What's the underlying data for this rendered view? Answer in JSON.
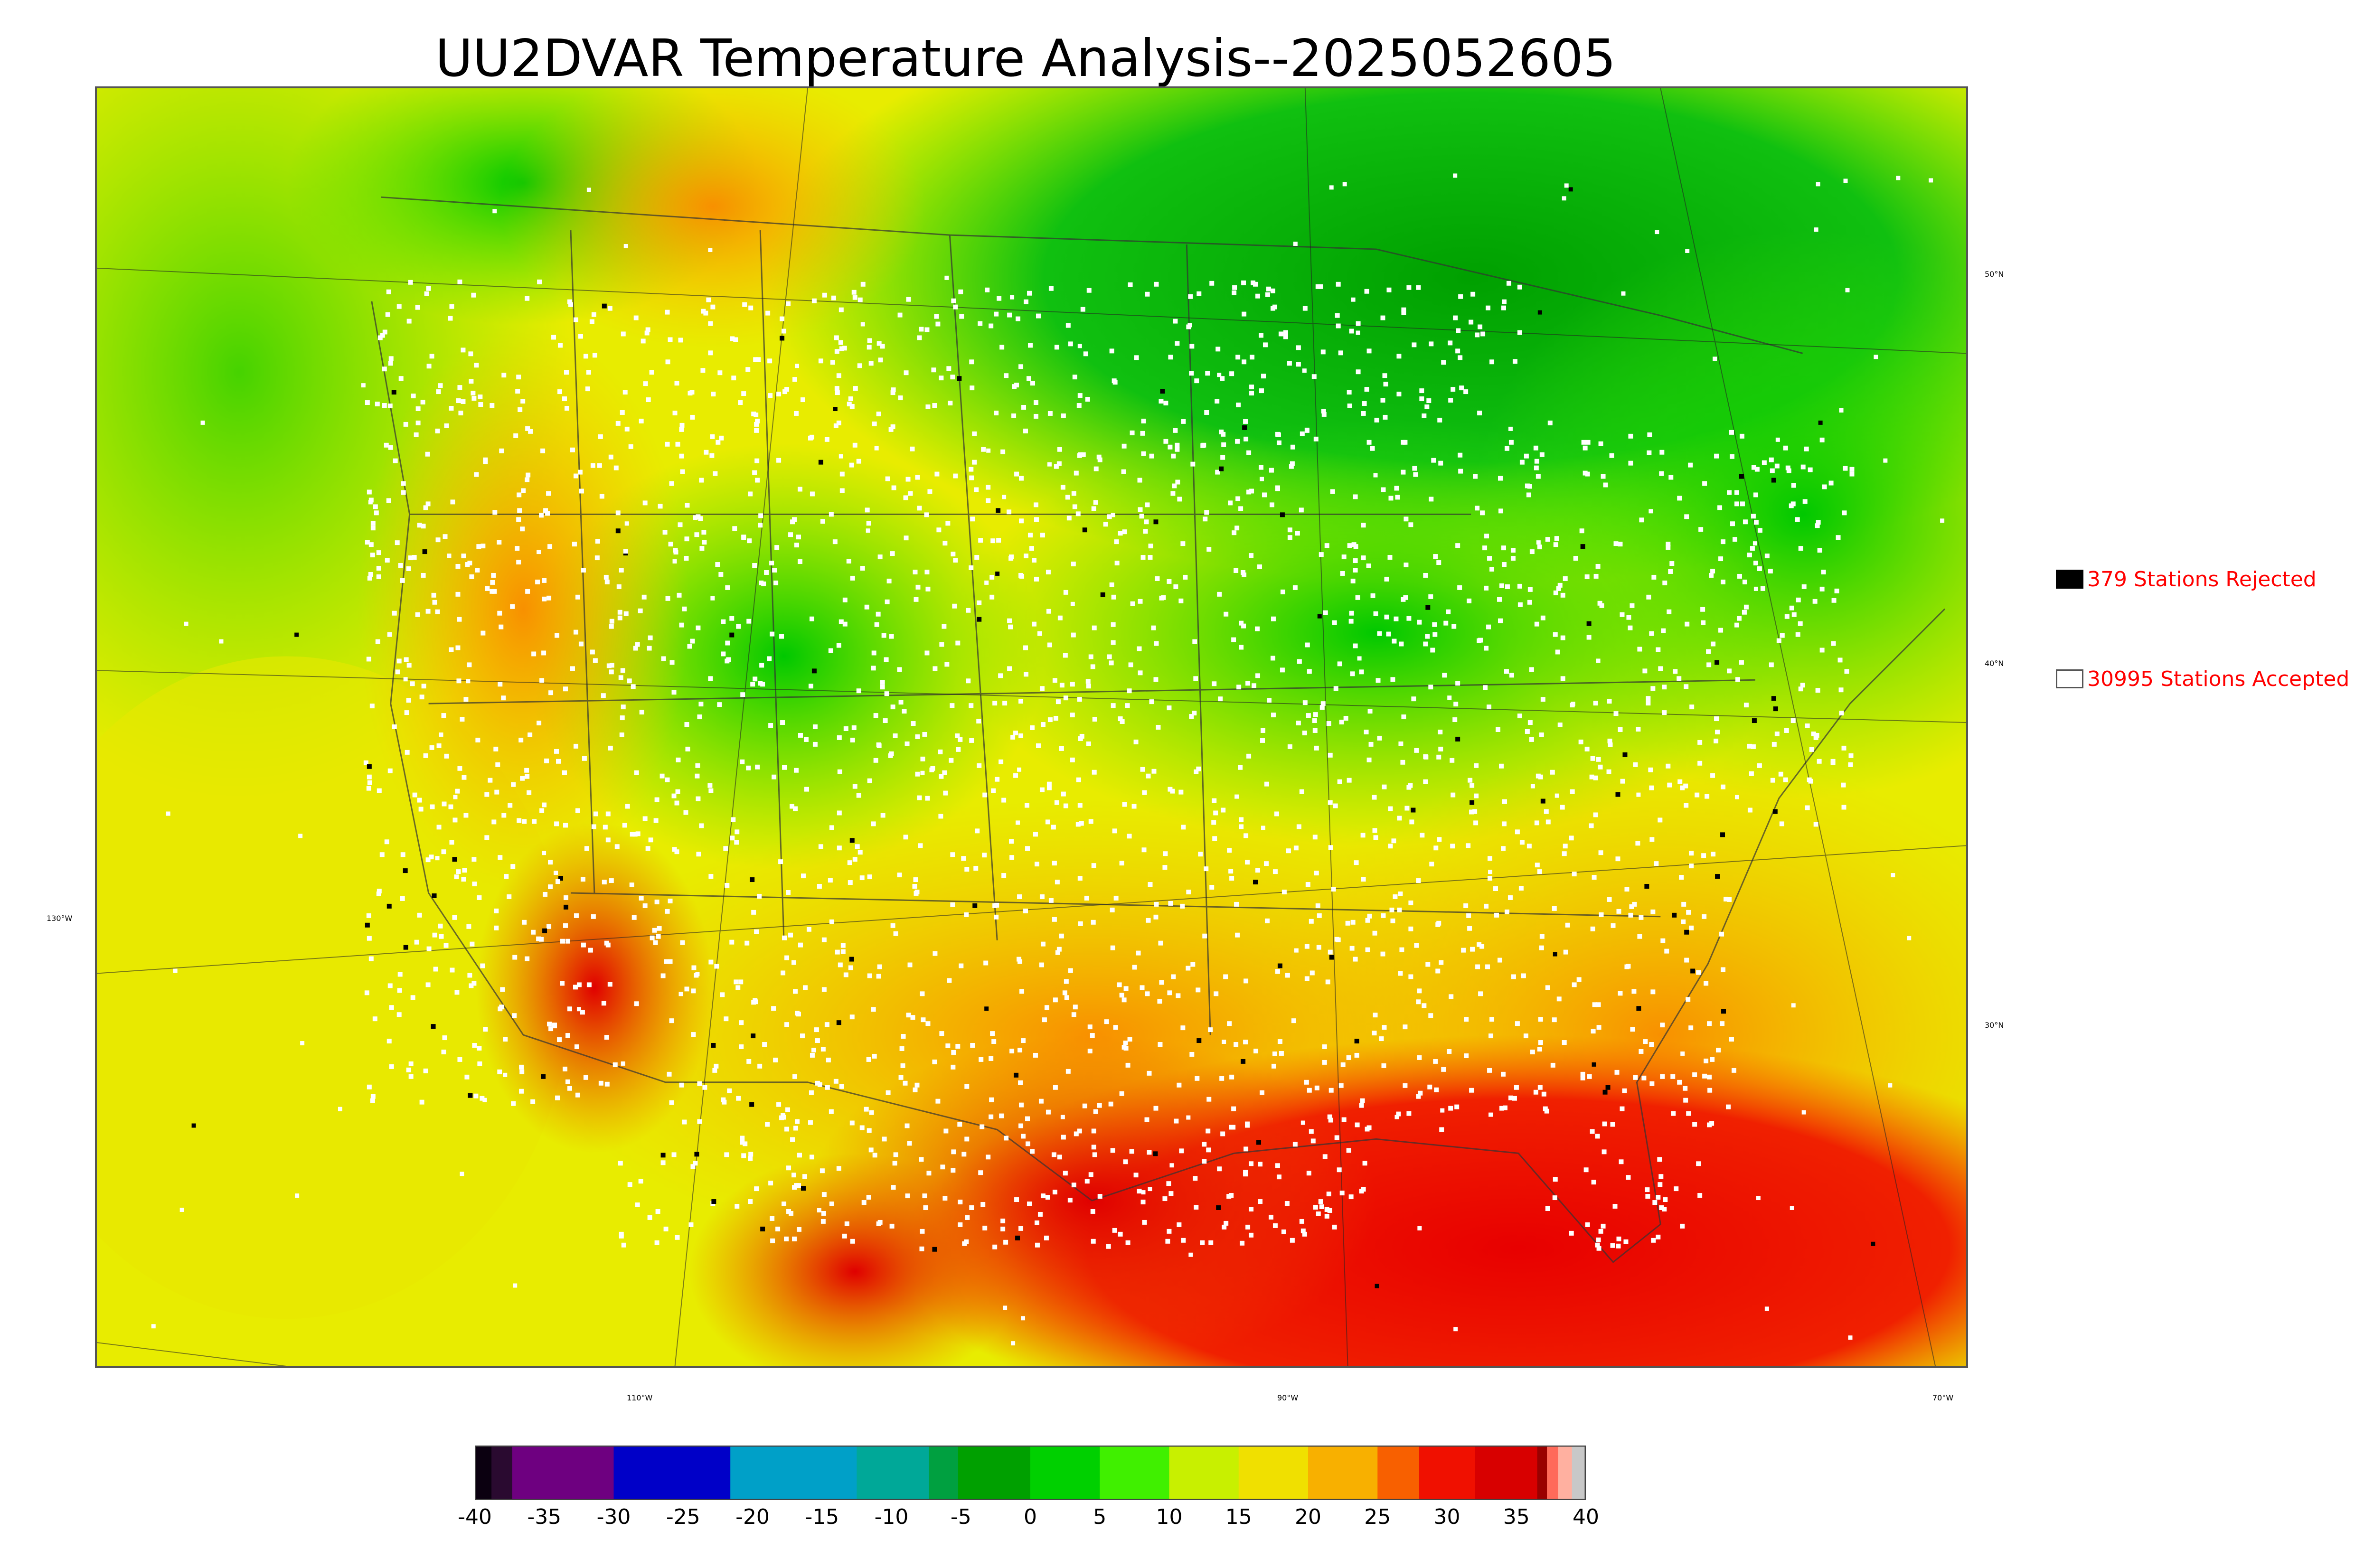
{
  "title": "UU2DVAR Temperature Analysis--2025052605",
  "map": {
    "lat_labels": [
      "50°N",
      "40°N",
      "30°N"
    ],
    "lon_labels": [
      "130°W",
      "110°W",
      "90°W",
      "70°W"
    ]
  },
  "legend": {
    "rejected": {
      "label": "379 Stations Rejected",
      "swatch_color": "#000000",
      "count": 379
    },
    "accepted": {
      "label": "30995 Stations Accepted",
      "swatch_color": "#ffffff",
      "count": 30995
    }
  },
  "colorbar": {
    "min": -40,
    "max": 40,
    "ticks": [
      "-40",
      "-35",
      "-30",
      "-25",
      "-20",
      "-15",
      "-10",
      "-5",
      "0",
      "5",
      "10",
      "15",
      "20",
      "25",
      "30",
      "35",
      "40"
    ],
    "segments": [
      {
        "from": -40,
        "to": -38.8,
        "color": "#0b0010"
      },
      {
        "from": -38.8,
        "to": -37.3,
        "color": "#2a0a30"
      },
      {
        "from": -37.3,
        "to": -30.0,
        "color": "#6e0080"
      },
      {
        "from": -30.0,
        "to": -21.6,
        "color": "#0000c8"
      },
      {
        "from": -21.6,
        "to": -12.5,
        "color": "#00a0c8"
      },
      {
        "from": -12.5,
        "to": -7.3,
        "color": "#00a898"
      },
      {
        "from": -7.3,
        "to": -5.2,
        "color": "#00a040"
      },
      {
        "from": -5.2,
        "to": 0.0,
        "color": "#00a000"
      },
      {
        "from": 0.0,
        "to": 5.0,
        "color": "#00d000"
      },
      {
        "from": 5.0,
        "to": 10.0,
        "color": "#40f000"
      },
      {
        "from": 10.0,
        "to": 15.0,
        "color": "#c8f000"
      },
      {
        "from": 15.0,
        "to": 20.0,
        "color": "#f0e000"
      },
      {
        "from": 20.0,
        "to": 25.0,
        "color": "#f8b000"
      },
      {
        "from": 25.0,
        "to": 28.0,
        "color": "#f86000"
      },
      {
        "from": 28.0,
        "to": 32.0,
        "color": "#f01000"
      },
      {
        "from": 32.0,
        "to": 36.5,
        "color": "#d80000"
      },
      {
        "from": 36.5,
        "to": 37.2,
        "color": "#9a0000"
      },
      {
        "from": 37.2,
        "to": 38.0,
        "color": "#ff6a5a"
      },
      {
        "from": 38.0,
        "to": 39.0,
        "color": "#ffb0a0"
      },
      {
        "from": 39.0,
        "to": 40.0,
        "color": "#c8c8c8"
      }
    ]
  }
}
